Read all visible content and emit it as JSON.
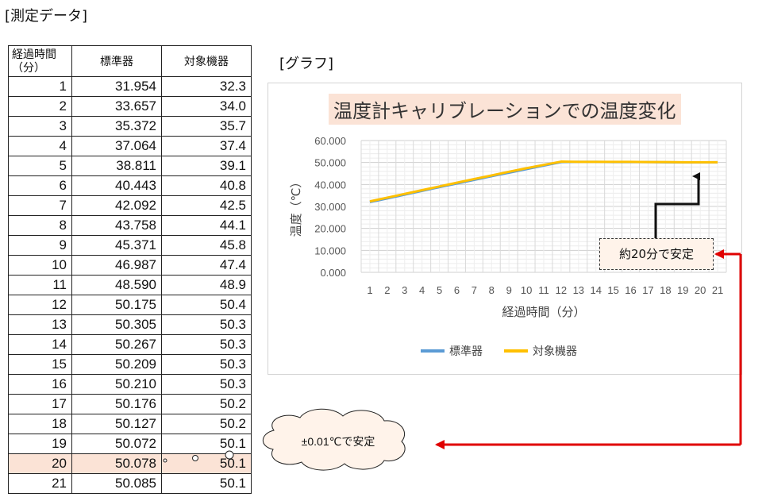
{
  "headings": {
    "data_section": "[測定データ]",
    "graph_section": "[グラフ]"
  },
  "table": {
    "headers": [
      "経過時間（分）",
      "標準器",
      "対象機器"
    ],
    "rows": [
      [
        "1",
        "31.954",
        "32.3"
      ],
      [
        "2",
        "33.657",
        "34.0"
      ],
      [
        "3",
        "35.372",
        "35.7"
      ],
      [
        "4",
        "37.064",
        "37.4"
      ],
      [
        "5",
        "38.811",
        "39.1"
      ],
      [
        "6",
        "40.443",
        "40.8"
      ],
      [
        "7",
        "42.092",
        "42.5"
      ],
      [
        "8",
        "43.758",
        "44.1"
      ],
      [
        "9",
        "45.371",
        "45.8"
      ],
      [
        "10",
        "46.987",
        "47.4"
      ],
      [
        "11",
        "48.590",
        "48.9"
      ],
      [
        "12",
        "50.175",
        "50.4"
      ],
      [
        "13",
        "50.305",
        "50.3"
      ],
      [
        "14",
        "50.267",
        "50.3"
      ],
      [
        "15",
        "50.209",
        "50.3"
      ],
      [
        "16",
        "50.210",
        "50.3"
      ],
      [
        "17",
        "50.176",
        "50.2"
      ],
      [
        "18",
        "50.127",
        "50.2"
      ],
      [
        "19",
        "50.072",
        "50.1"
      ],
      [
        "20",
        "50.078",
        "50.1"
      ],
      [
        "21",
        "50.085",
        "50.1"
      ]
    ],
    "highlight_row": "20"
  },
  "annotations": {
    "stable_time": "約20分で安定",
    "stable_precision": "±0.01℃で安定"
  },
  "colors": {
    "standard": "#5b9bd5",
    "target": "#ffc000",
    "highlight": "#fbe3d6",
    "arrow": "#e00000"
  },
  "chart_data": {
    "type": "line",
    "title": "温度計キャリブレーションでの温度変化",
    "xlabel": "経過時間（分）",
    "ylabel": "温度（℃）",
    "x": [
      1,
      2,
      3,
      4,
      5,
      6,
      7,
      8,
      9,
      10,
      11,
      12,
      13,
      14,
      15,
      16,
      17,
      18,
      19,
      20,
      21
    ],
    "ylim": [
      0,
      60
    ],
    "yticks": [
      "0.000",
      "10.000",
      "20.000",
      "30.000",
      "40.000",
      "50.000",
      "60.000"
    ],
    "grid": true,
    "legend_position": "bottom",
    "series": [
      {
        "name": "標準器",
        "values": [
          31.954,
          33.657,
          35.372,
          37.064,
          38.811,
          40.443,
          42.092,
          43.758,
          45.371,
          46.987,
          48.59,
          50.175,
          50.305,
          50.267,
          50.209,
          50.21,
          50.176,
          50.127,
          50.072,
          50.078,
          50.085
        ]
      },
      {
        "name": "対象機器",
        "values": [
          32.3,
          34.0,
          35.7,
          37.4,
          39.1,
          40.8,
          42.5,
          44.1,
          45.8,
          47.4,
          48.9,
          50.4,
          50.3,
          50.3,
          50.3,
          50.3,
          50.2,
          50.2,
          50.1,
          50.1,
          50.1
        ]
      }
    ]
  }
}
